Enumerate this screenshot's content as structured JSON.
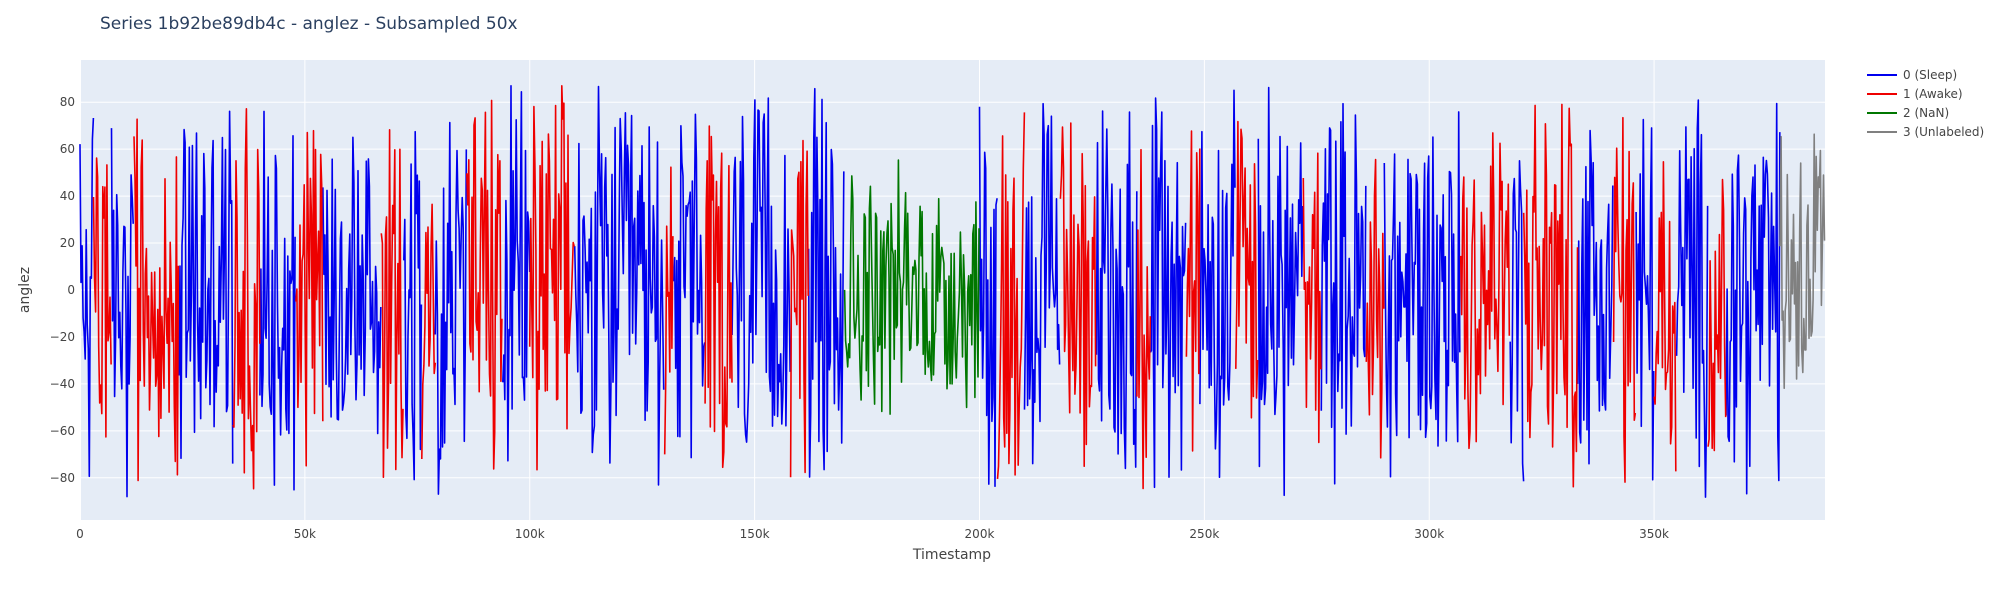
{
  "chart_data": {
    "type": "line",
    "title": "Series 1b92be89db4c - anglez - Subsampled 50x",
    "xlabel": "Timestamp",
    "ylabel": "anglez",
    "xlim": [
      0,
      388000
    ],
    "ylim": [
      -98,
      98
    ],
    "xticks": [
      0,
      50000,
      100000,
      150000,
      200000,
      250000,
      300000,
      350000
    ],
    "xtick_labels": [
      "0",
      "50k",
      "100k",
      "150k",
      "200k",
      "250k",
      "300k",
      "350k"
    ],
    "yticks": [
      -80,
      -60,
      -40,
      -20,
      0,
      20,
      40,
      60,
      80
    ],
    "ytick_labels": [
      "−80",
      "−60",
      "−40",
      "−20",
      "0",
      "20",
      "40",
      "60",
      "80"
    ],
    "grid": true,
    "legend_position": "top-right",
    "series": [
      {
        "name": "0 (Sleep)",
        "color": "#0000ee",
        "segments": [
          [
            0,
            3000
          ],
          [
            7000,
            12000
          ],
          [
            22000,
            34000
          ],
          [
            40000,
            48000
          ],
          [
            54000,
            67000
          ],
          [
            72000,
            76000
          ],
          [
            79000,
            86000
          ],
          [
            94000,
            100000
          ],
          [
            110000,
            130000
          ],
          [
            132000,
            139000
          ],
          [
            145000,
            158000
          ],
          [
            162000,
            170000
          ],
          [
            200000,
            204000
          ],
          [
            210000,
            218000
          ],
          [
            226000,
            235000
          ],
          [
            238000,
            246000
          ],
          [
            249000,
            257000
          ],
          [
            262000,
            272000
          ],
          [
            276000,
            286000
          ],
          [
            290000,
            307000
          ],
          [
            318000,
            321000
          ],
          [
            333000,
            341000
          ],
          [
            346000,
            350000
          ],
          [
            355000,
            362000
          ],
          [
            366000,
            378000
          ]
        ]
      },
      {
        "name": "1 (Awake)",
        "color": "#ee0000",
        "segments": [
          [
            3000,
            7000
          ],
          [
            12000,
            22000
          ],
          [
            34000,
            40000
          ],
          [
            48000,
            54000
          ],
          [
            67000,
            72000
          ],
          [
            76000,
            79000
          ],
          [
            86000,
            94000
          ],
          [
            100000,
            110000
          ],
          [
            130000,
            132000
          ],
          [
            139000,
            145000
          ],
          [
            158000,
            162000
          ],
          [
            204000,
            210000
          ],
          [
            218000,
            226000
          ],
          [
            235000,
            238000
          ],
          [
            246000,
            249000
          ],
          [
            257000,
            262000
          ],
          [
            272000,
            276000
          ],
          [
            286000,
            290000
          ],
          [
            307000,
            318000
          ],
          [
            321000,
            333000
          ],
          [
            341000,
            346000
          ],
          [
            350000,
            355000
          ],
          [
            362000,
            366000
          ]
        ]
      },
      {
        "name": "2 (NaN)",
        "color": "#007700",
        "segments": [
          [
            170000,
            200000
          ]
        ]
      },
      {
        "name": "3 (Unlabeled)",
        "color": "#808080",
        "segments": [
          [
            378000,
            388000
          ]
        ]
      }
    ]
  }
}
